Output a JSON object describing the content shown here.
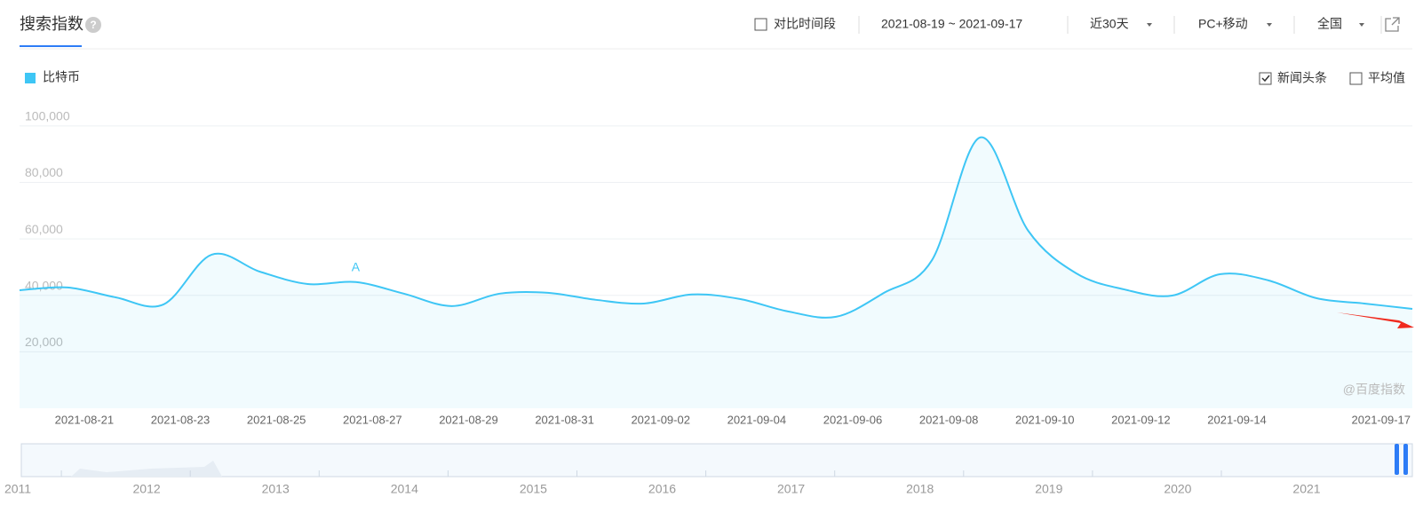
{
  "header": {
    "title": "搜索指数",
    "help": "?",
    "compare": "对比时间段",
    "date_range": "2021-08-19 ~ 2021-09-17",
    "period": "近30天",
    "device": "PC+移动",
    "region": "全国"
  },
  "options": {
    "news": "新闻头条",
    "news_checked": true,
    "average": "平均值",
    "average_checked": false
  },
  "chart_data": {
    "type": "line",
    "color": "#3ec6f5",
    "x": [
      "2021-08-19",
      "2021-08-20",
      "2021-08-21",
      "2021-08-22",
      "2021-08-23",
      "2021-08-24",
      "2021-08-25",
      "2021-08-26",
      "2021-08-27",
      "2021-08-28",
      "2021-08-29",
      "2021-08-30",
      "2021-08-31",
      "2021-09-01",
      "2021-09-02",
      "2021-09-03",
      "2021-09-04",
      "2021-09-05",
      "2021-09-06",
      "2021-09-07",
      "2021-09-08",
      "2021-09-09",
      "2021-09-10",
      "2021-09-11",
      "2021-09-12",
      "2021-09-13",
      "2021-09-14",
      "2021-09-15",
      "2021-09-16",
      "2021-09-17"
    ],
    "xticklabels": [
      null,
      null,
      "2021-08-21",
      null,
      "2021-08-23",
      null,
      "2021-08-25",
      null,
      "2021-08-27",
      null,
      "2021-08-29",
      null,
      "2021-08-31",
      null,
      "2021-09-02",
      null,
      "2021-09-04",
      null,
      "2021-09-06",
      null,
      "2021-09-08",
      null,
      "2021-09-10",
      null,
      "2021-09-12",
      null,
      "2021-09-14",
      null,
      null,
      "2021-09-17"
    ],
    "series": [
      {
        "name": "比特币",
        "color": "#3ec6f5",
        "values": [
          41800,
          42800,
          39300,
          36800,
          54400,
          48400,
          44000,
          44700,
          40600,
          36200,
          40600,
          40900,
          38400,
          37100,
          40300,
          38700,
          34300,
          32400,
          40900,
          52500,
          95900,
          62900,
          47800,
          42100,
          39900,
          47500,
          45300,
          39000,
          37100,
          35200
        ]
      }
    ],
    "ylim": [
      0,
      110000
    ],
    "yticks": [
      {
        "value": 20000,
        "label": "20,000"
      },
      {
        "value": 40000,
        "label": "40,000"
      },
      {
        "value": 60000,
        "label": "60,000"
      },
      {
        "value": 80000,
        "label": "80,000"
      },
      {
        "value": 100000,
        "label": "100,000"
      }
    ],
    "grid": true,
    "annotations": [
      {
        "text": "A",
        "at": "2021-08-26"
      }
    ],
    "watermark": "@百度指数"
  },
  "timeline": {
    "years": [
      "2011",
      "2012",
      "2013",
      "2014",
      "2015",
      "2016",
      "2017",
      "2018",
      "2019",
      "2020",
      "2021"
    ]
  }
}
